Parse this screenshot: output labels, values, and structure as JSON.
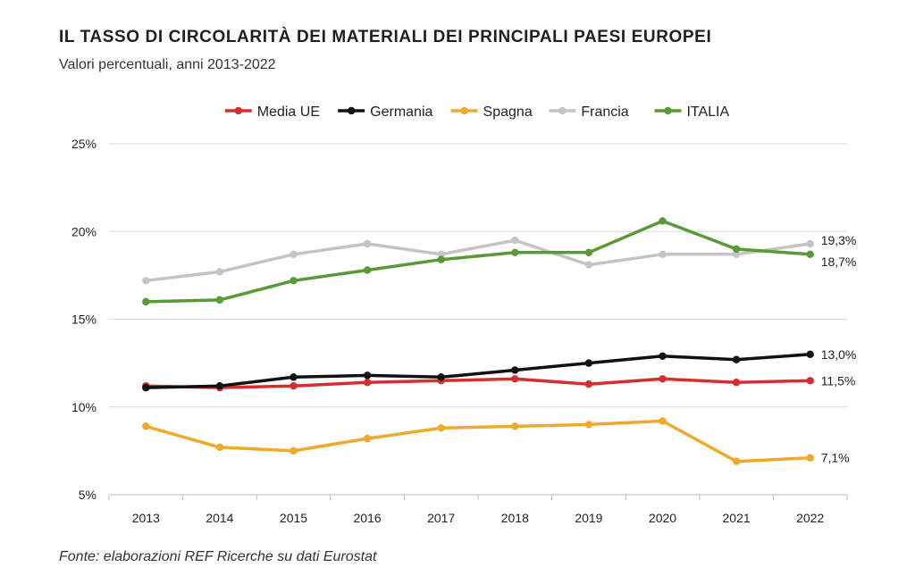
{
  "chart_data": {
    "type": "line",
    "title": "IL TASSO DI CIRCOLARITÀ DEI MATERIALI DEI PRINCIPALI PAESI EUROPEI",
    "subtitle": "Valori percentuali, anni 2013-2022",
    "source": "Fonte: elaborazioni REF Ricerche su dati Eurostat",
    "xlabel": "",
    "ylabel": "",
    "x": [
      "2013",
      "2014",
      "2015",
      "2016",
      "2017",
      "2018",
      "2019",
      "2020",
      "2021",
      "2022"
    ],
    "ylim": [
      5,
      25
    ],
    "yticks": [
      5,
      10,
      15,
      20,
      25
    ],
    "ytick_labels": [
      "5%",
      "10%",
      "15%",
      "20%",
      "25%"
    ],
    "grid": true,
    "legend_position": "top-center",
    "series": [
      {
        "name": "Media UE",
        "color": "#d32f2f",
        "values": [
          11.2,
          11.1,
          11.2,
          11.4,
          11.5,
          11.6,
          11.3,
          11.6,
          11.4,
          11.5
        ],
        "end_label": "11,5%"
      },
      {
        "name": "Germania",
        "color": "#111111",
        "values": [
          11.1,
          11.2,
          11.7,
          11.8,
          11.7,
          12.1,
          12.5,
          12.9,
          12.7,
          13.0
        ],
        "end_label": "13,0%"
      },
      {
        "name": "Spagna",
        "color": "#f0a92a",
        "values": [
          8.9,
          7.7,
          7.5,
          8.2,
          8.8,
          8.9,
          9.0,
          9.2,
          6.9,
          7.1
        ],
        "end_label": "7,1%"
      },
      {
        "name": "Francia",
        "color": "#c4c4c4",
        "values": [
          17.2,
          17.7,
          18.7,
          19.3,
          18.7,
          19.5,
          18.1,
          18.7,
          18.7,
          19.3
        ],
        "end_label": "19,3%"
      },
      {
        "name": "ITALIA",
        "color": "#5a9a36",
        "values": [
          16.0,
          16.1,
          17.2,
          17.8,
          18.4,
          18.8,
          18.8,
          20.6,
          19.0,
          18.7
        ],
        "end_label": "18,7%"
      }
    ]
  }
}
